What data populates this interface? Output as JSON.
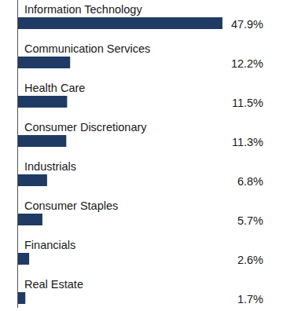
{
  "chart_data": {
    "type": "bar",
    "orientation": "horizontal",
    "categories": [
      "Information Technology",
      "Communication Services",
      "Health Care",
      "Consumer Discretionary",
      "Industrials",
      "Consumer Staples",
      "Financials",
      "Real Estate"
    ],
    "values": [
      47.9,
      12.2,
      11.5,
      11.3,
      6.8,
      5.7,
      2.6,
      1.7
    ],
    "value_labels": [
      "47.9%",
      "12.2%",
      "11.5%",
      "11.3%",
      "6.8%",
      "5.7%",
      "2.6%",
      "1.7%"
    ],
    "color": "#1f3b64",
    "xlim": [
      0,
      48
    ],
    "data_labels": true,
    "tick_labels": false,
    "grid": false
  }
}
